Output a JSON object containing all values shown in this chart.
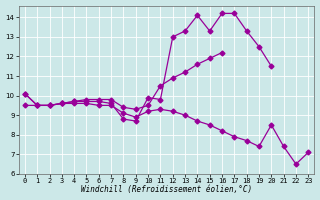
{
  "x": [
    0,
    1,
    2,
    3,
    4,
    5,
    6,
    7,
    8,
    9,
    10,
    11,
    12,
    13,
    14,
    15,
    16,
    17,
    18,
    19,
    20,
    21,
    22,
    23
  ],
  "line1": [
    10.1,
    9.5,
    9.5,
    9.6,
    9.7,
    9.7,
    9.7,
    9.6,
    8.8,
    8.7,
    9.9,
    9.8,
    13.0,
    13.3,
    14.1,
    13.3,
    14.2,
    14.2,
    13.3,
    12.5,
    11.5,
    null,
    null,
    null
  ],
  "line2": [
    10.1,
    9.5,
    9.5,
    9.6,
    9.7,
    9.8,
    9.8,
    9.8,
    9.4,
    9.3,
    9.5,
    10.5,
    10.9,
    11.2,
    11.6,
    11.9,
    12.2,
    null,
    null,
    null,
    null,
    null,
    null,
    null
  ],
  "line3": [
    9.5,
    9.5,
    9.5,
    9.6,
    9.6,
    9.6,
    9.5,
    9.5,
    9.1,
    8.9,
    9.2,
    9.3,
    9.2,
    9.0,
    8.7,
    8.5,
    8.2,
    7.9,
    7.7,
    7.4,
    8.5,
    7.4,
    6.5,
    7.1
  ],
  "line_color": "#990099",
  "bg_color": "#cce8e8",
  "grid_color": "#b0d8d8",
  "xlabel": "Windchill (Refroidissement éolien,°C)",
  "xlim": [
    -0.5,
    23.5
  ],
  "ylim": [
    6,
    14.6
  ],
  "yticks": [
    6,
    7,
    8,
    9,
    10,
    11,
    12,
    13,
    14
  ],
  "xticks": [
    0,
    1,
    2,
    3,
    4,
    5,
    6,
    7,
    8,
    9,
    10,
    11,
    12,
    13,
    14,
    15,
    16,
    17,
    18,
    19,
    20,
    21,
    22,
    23
  ],
  "marker": "D",
  "markersize": 2.5,
  "linewidth": 0.9,
  "tick_fontsize": 5.0,
  "xlabel_fontsize": 5.5
}
